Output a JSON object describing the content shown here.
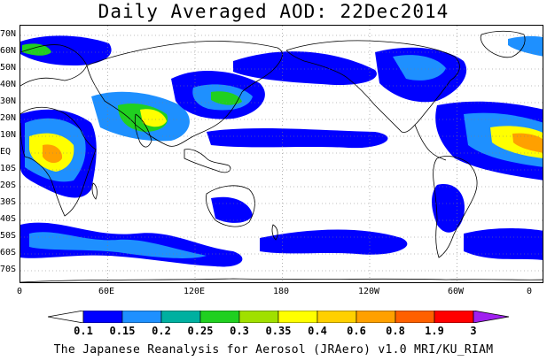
{
  "title": "Daily Averaged AOD: 22Dec2014",
  "footer": "The Japanese Reanalysis for Aerosol (JRAero) v1.0 MRI/KU_RIAM",
  "lat_labels": [
    "70N",
    "60N",
    "50N",
    "40N",
    "30N",
    "20N",
    "10N",
    "EQ",
    "10S",
    "20S",
    "30S",
    "40S",
    "50S",
    "60S",
    "70S"
  ],
  "lon_labels": [
    "0",
    "60E",
    "120E",
    "180",
    "120W",
    "60W",
    "0"
  ],
  "colorbar": {
    "labels": [
      "0.1",
      "0.15",
      "0.2",
      "0.25",
      "0.3",
      "0.35",
      "0.4",
      "0.6",
      "0.8",
      "1.9",
      "3"
    ],
    "colors": [
      "#ffffff",
      "#0000ff",
      "#1e90ff",
      "#00b0a0",
      "#20d020",
      "#a0e000",
      "#ffff00",
      "#ffd000",
      "#ffa000",
      "#ff6000",
      "#ff0000",
      "#a020f0"
    ]
  },
  "map": {
    "background": "#ffffff",
    "aerosol_low": "#0000ff",
    "aerosol_mid": "#1e90ff",
    "aerosol_teal": "#00b0a0",
    "aerosol_green": "#20d020",
    "aerosol_yellow": "#ffff00",
    "aerosol_orange": "#ffa000",
    "coast_color": "#000000",
    "grid_color": "#808080"
  }
}
